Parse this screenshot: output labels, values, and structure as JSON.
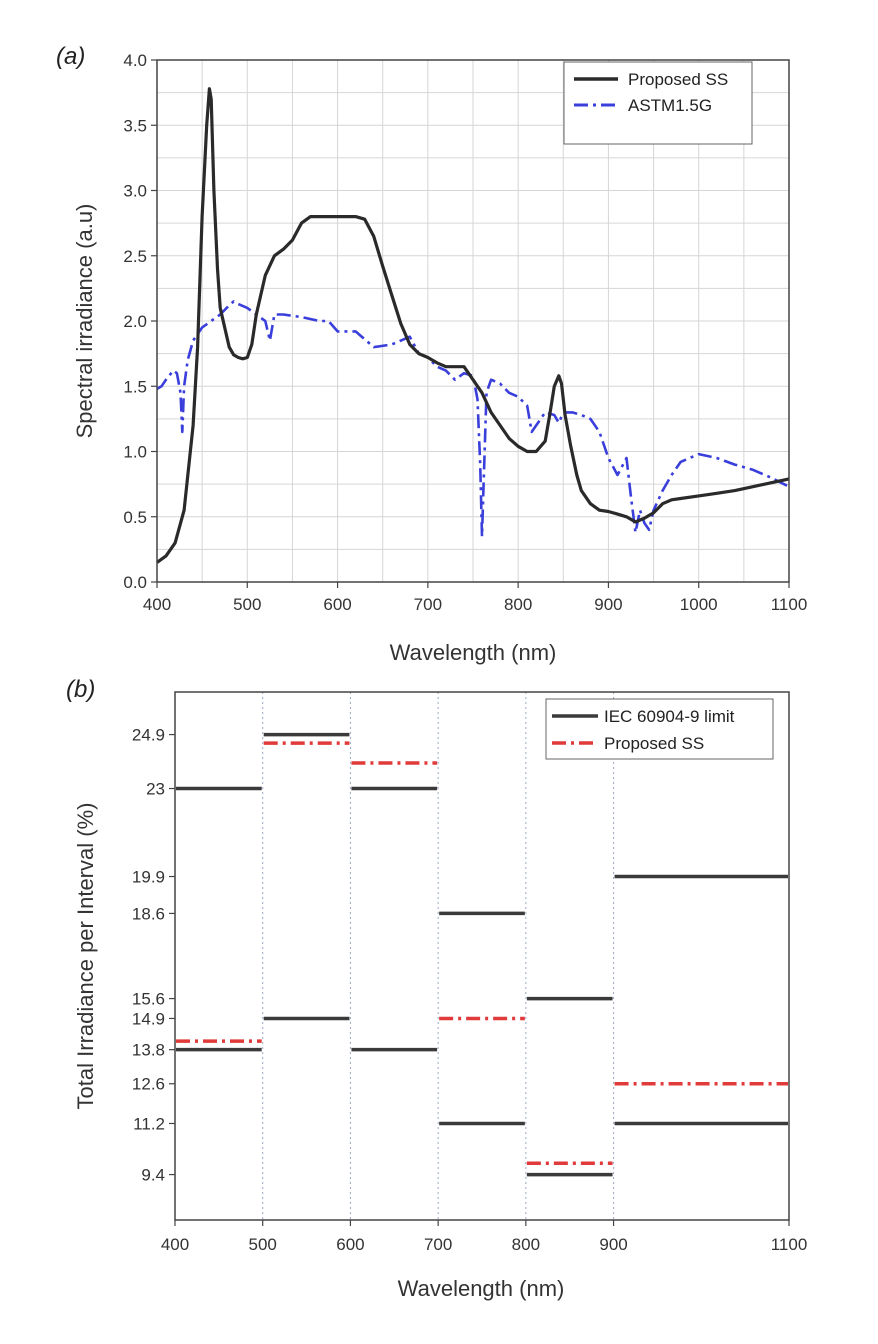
{
  "chart_data": [
    {
      "panel": "(a)",
      "type": "line",
      "xlabel": "Wavelength (nm)",
      "ylabel": "Spectral irradiance (a.u)",
      "xlim": [
        400,
        1100
      ],
      "ylim": [
        0.0,
        4.0
      ],
      "xticks": [
        "400",
        "500",
        "600",
        "700",
        "800",
        "900",
        "1000",
        "1100"
      ],
      "yticks": [
        "0.0",
        "0.5",
        "1.0",
        "1.5",
        "2.0",
        "2.5",
        "3.0",
        "3.5",
        "4.0"
      ],
      "grid": true,
      "legend_position": "top-right",
      "series": [
        {
          "name": "Proposed SS",
          "color": "#2a2a2a",
          "style": "solid",
          "x": [
            400,
            410,
            420,
            430,
            440,
            445,
            450,
            455,
            458,
            460,
            463,
            467,
            470,
            475,
            480,
            485,
            490,
            495,
            500,
            505,
            510,
            520,
            530,
            540,
            550,
            560,
            570,
            575,
            580,
            590,
            600,
            610,
            620,
            630,
            640,
            650,
            660,
            670,
            680,
            690,
            700,
            710,
            720,
            730,
            740,
            750,
            760,
            770,
            780,
            790,
            800,
            810,
            820,
            830,
            835,
            840,
            845,
            848,
            852,
            858,
            865,
            870,
            880,
            890,
            900,
            910,
            920,
            930,
            940,
            950,
            960,
            970,
            980,
            1000,
            1020,
            1040,
            1060,
            1080,
            1100
          ],
          "y": [
            0.15,
            0.2,
            0.3,
            0.55,
            1.2,
            1.8,
            2.8,
            3.5,
            3.78,
            3.7,
            3.0,
            2.4,
            2.1,
            1.95,
            1.8,
            1.74,
            1.72,
            1.71,
            1.72,
            1.82,
            2.05,
            2.35,
            2.5,
            2.55,
            2.62,
            2.75,
            2.8,
            2.8,
            2.8,
            2.8,
            2.8,
            2.8,
            2.8,
            2.78,
            2.65,
            2.42,
            2.2,
            1.98,
            1.82,
            1.75,
            1.72,
            1.68,
            1.65,
            1.65,
            1.65,
            1.55,
            1.45,
            1.3,
            1.2,
            1.1,
            1.04,
            1.0,
            1.0,
            1.08,
            1.28,
            1.5,
            1.58,
            1.52,
            1.28,
            1.05,
            0.82,
            0.7,
            0.6,
            0.55,
            0.54,
            0.52,
            0.5,
            0.46,
            0.49,
            0.53,
            0.6,
            0.63,
            0.64,
            0.66,
            0.68,
            0.7,
            0.73,
            0.76,
            0.79
          ]
        },
        {
          "name": "ASTM1.5G",
          "color": "#3a3fdc",
          "style": "dashdot",
          "x": [
            400,
            405,
            410,
            418,
            422,
            426,
            428,
            430,
            434,
            440,
            450,
            460,
            470,
            480,
            485,
            490,
            500,
            510,
            520,
            525,
            530,
            540,
            560,
            580,
            590,
            600,
            620,
            640,
            660,
            680,
            690,
            700,
            710,
            720,
            730,
            740,
            750,
            755,
            758,
            760,
            762,
            765,
            770,
            780,
            790,
            800,
            810,
            815,
            820,
            830,
            840,
            845,
            850,
            860,
            870,
            880,
            890,
            900,
            910,
            920,
            925,
            930,
            935,
            940,
            945,
            950,
            960,
            970,
            980,
            1000,
            1020,
            1040,
            1060,
            1080,
            1100
          ],
          "y": [
            1.48,
            1.5,
            1.55,
            1.62,
            1.6,
            1.45,
            1.15,
            1.5,
            1.7,
            1.85,
            1.95,
            2.0,
            2.05,
            2.12,
            2.15,
            2.13,
            2.1,
            2.05,
            2.0,
            1.85,
            2.05,
            2.05,
            2.03,
            2.0,
            2.0,
            1.92,
            1.92,
            1.8,
            1.82,
            1.88,
            1.75,
            1.72,
            1.65,
            1.62,
            1.55,
            1.6,
            1.58,
            1.4,
            0.9,
            0.35,
            0.8,
            1.45,
            1.55,
            1.52,
            1.45,
            1.42,
            1.35,
            1.15,
            1.2,
            1.3,
            1.28,
            1.22,
            1.3,
            1.3,
            1.28,
            1.25,
            1.15,
            0.95,
            0.82,
            0.95,
            0.65,
            0.38,
            0.55,
            0.45,
            0.4,
            0.55,
            0.7,
            0.82,
            0.92,
            0.98,
            0.95,
            0.9,
            0.86,
            0.8,
            0.73
          ]
        }
      ]
    },
    {
      "panel": "(b)",
      "type": "step",
      "xlabel": "Wavelength (nm)",
      "ylabel": "Total Irradiance per Interval (%)",
      "xlim": [
        400,
        1100
      ],
      "ylim": [
        7.8,
        26.4
      ],
      "xticks": [
        "400",
        "500",
        "600",
        "700",
        "800",
        "900",
        "1100"
      ],
      "yticks": [
        "9.4",
        "11.2",
        "12.6",
        "13.8",
        "14.9",
        "15.6",
        "18.6",
        "19.9",
        "23",
        "24.9"
      ],
      "grid": "vertical dotted at interval boundaries",
      "legend_position": "top-right",
      "intervals": [
        {
          "range": [
            400,
            500
          ],
          "limit_low": 13.8,
          "limit_high": 23.0,
          "proposed": 14.1
        },
        {
          "range": [
            500,
            600
          ],
          "limit_low": 14.9,
          "limit_high": 24.9,
          "proposed": 24.6
        },
        {
          "range": [
            600,
            700
          ],
          "limit_low": 13.8,
          "limit_high": 23.0,
          "proposed": 23.9
        },
        {
          "range": [
            700,
            800
          ],
          "limit_low": 11.2,
          "limit_high": 18.6,
          "proposed": 14.9
        },
        {
          "range": [
            800,
            900
          ],
          "limit_low": 9.4,
          "limit_high": 15.6,
          "proposed": 9.8
        },
        {
          "range": [
            900,
            1100
          ],
          "limit_low": 11.2,
          "limit_high": 19.9,
          "proposed": 12.6
        }
      ],
      "series": [
        {
          "name": "IEC 60904-9 limit",
          "color": "#3a3a3a",
          "style": "solid"
        },
        {
          "name": "Proposed SS",
          "color": "#e03a3a",
          "style": "dashdot"
        }
      ]
    }
  ]
}
